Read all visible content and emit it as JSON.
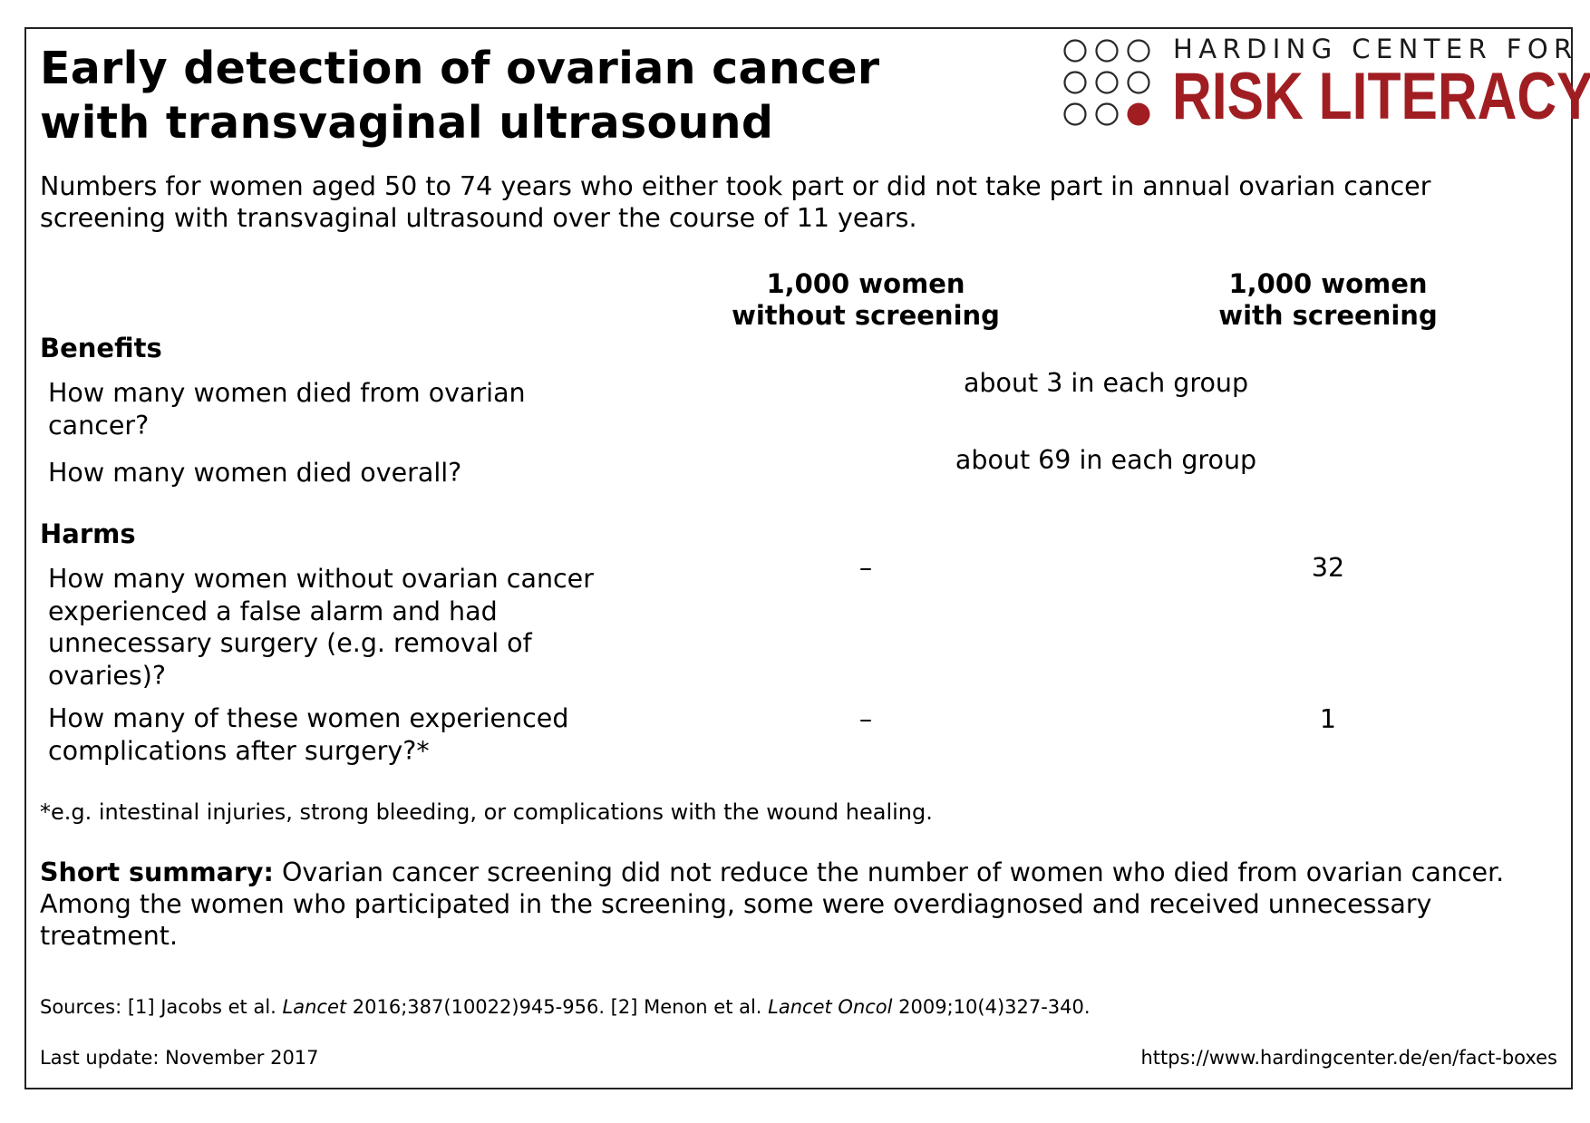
{
  "header": {
    "title_line1": "Early detection of ovarian cancer",
    "title_line2": "with transvaginal ultrasound",
    "subtitle_line1": "Numbers for women aged 50 to 74 years who either took part or did not take part in annual ovarian cancer",
    "subtitle_line2": "screening with transvaginal ultrasound over the course of 11 years."
  },
  "logo": {
    "top_text": "HARDING CENTER FOR",
    "main_text": "RISK LITERACY",
    "accent_color": "#a01e22"
  },
  "columns": {
    "without_line1": "1,000 women",
    "without_line2": "without screening",
    "with_line1": "1,000 women",
    "with_line2": "with screening"
  },
  "benefits": {
    "heading": "Benefits",
    "rows": [
      {
        "q_line1": "How many women died from ovarian",
        "q_line2": "cancer?",
        "combined": "about 3 in each group"
      },
      {
        "q_line1": "How many women died overall?",
        "combined": "about 69 in each group"
      }
    ]
  },
  "harms": {
    "heading": "Harms",
    "rows": [
      {
        "q_line1": "How many women without ovarian cancer",
        "q_line2": "experienced a false alarm and had",
        "q_line3": "unnecessary surgery (e.g. removal of",
        "q_line4": "ovaries)?",
        "without": "–",
        "with": "32"
      },
      {
        "q_line1": "How many of these women experienced",
        "q_line2": "complications after surgery?*",
        "without": "–",
        "with": "1"
      }
    ]
  },
  "footnote": "*e.g. intestinal injuries, strong bleeding, or complications with the wound healing.",
  "summary": {
    "label": "Short summary:",
    "line1": " Ovarian cancer screening did not reduce the number of women who died from ovarian cancer.",
    "line2": "Among the women who participated in the screening, some were overdiagnosed and received unnecessary",
    "line3": "treatment."
  },
  "sources": {
    "prefix": "Sources: [1] Jacobs et al. ",
    "journal1": "Lancet",
    "ref1": " 2016;387(10022)945-956. [2] Menon et al. ",
    "journal2": "Lancet Oncol",
    "ref2": " 2009;10(4)327-340."
  },
  "last_update": "Last update: November 2017",
  "url": "https://www.hardingcenter.de/en/fact-boxes"
}
